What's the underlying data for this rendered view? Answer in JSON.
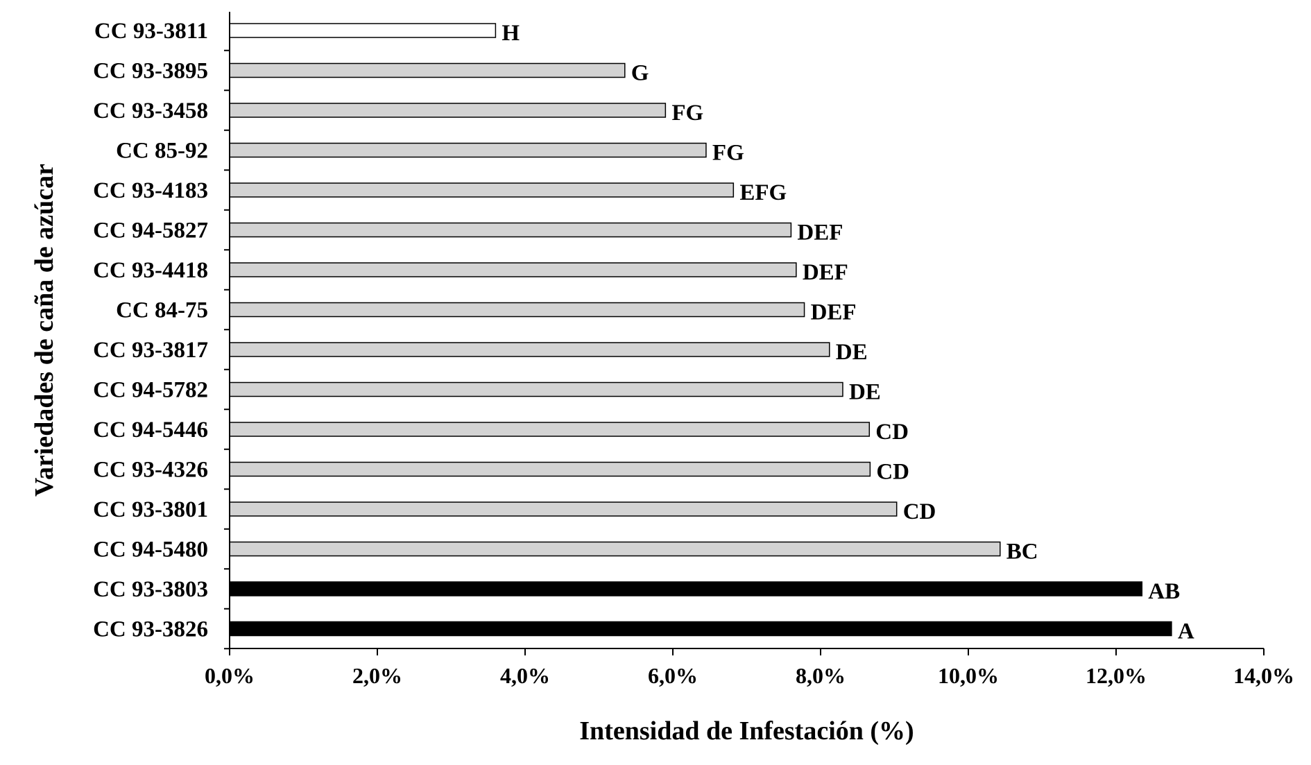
{
  "chart_data": {
    "type": "bar",
    "orientation": "horizontal",
    "xlabel": "Intensidad de Infestación (%)",
    "ylabel": "Variedades de caña de azúcar",
    "xlim": [
      0,
      14
    ],
    "x_ticks": [
      "0,0%",
      "2,0%",
      "4,0%",
      "6,0%",
      "8,0%",
      "10,0%",
      "12,0%",
      "14,0%"
    ],
    "grid": false,
    "legend": "none",
    "bars": [
      {
        "category": "CC 93-3811",
        "value": 3.6,
        "label": "H",
        "fill": "#ffffff"
      },
      {
        "category": "CC 93-3895",
        "value": 5.35,
        "label": "G",
        "fill": "#d3d3d3"
      },
      {
        "category": "CC 93-3458",
        "value": 5.9,
        "label": "FG",
        "fill": "#d3d3d3"
      },
      {
        "category": "CC 85-92",
        "value": 6.45,
        "label": "FG",
        "fill": "#d3d3d3"
      },
      {
        "category": "CC 93-4183",
        "value": 6.82,
        "label": "EFG",
        "fill": "#d3d3d3"
      },
      {
        "category": "CC 94-5827",
        "value": 7.6,
        "label": "DEF",
        "fill": "#d3d3d3"
      },
      {
        "category": "CC 93-4418",
        "value": 7.67,
        "label": "DEF",
        "fill": "#d3d3d3"
      },
      {
        "category": "CC 84-75",
        "value": 7.78,
        "label": "DEF",
        "fill": "#d3d3d3"
      },
      {
        "category": "CC 93-3817",
        "value": 8.12,
        "label": "DE",
        "fill": "#d3d3d3"
      },
      {
        "category": "CC 94-5782",
        "value": 8.3,
        "label": "DE",
        "fill": "#d3d3d3"
      },
      {
        "category": "CC 94-5446",
        "value": 8.66,
        "label": "CD",
        "fill": "#d3d3d3"
      },
      {
        "category": "CC 93-4326",
        "value": 8.67,
        "label": "CD",
        "fill": "#d3d3d3"
      },
      {
        "category": "CC 93-3801",
        "value": 9.03,
        "label": "CD",
        "fill": "#d3d3d3"
      },
      {
        "category": "CC 94-5480",
        "value": 10.43,
        "label": "BC",
        "fill": "#d3d3d3"
      },
      {
        "category": "CC 93-3803",
        "value": 12.35,
        "label": "AB",
        "fill": "#000000"
      },
      {
        "category": "CC 93-3826",
        "value": 12.75,
        "label": "A",
        "fill": "#000000"
      }
    ]
  }
}
